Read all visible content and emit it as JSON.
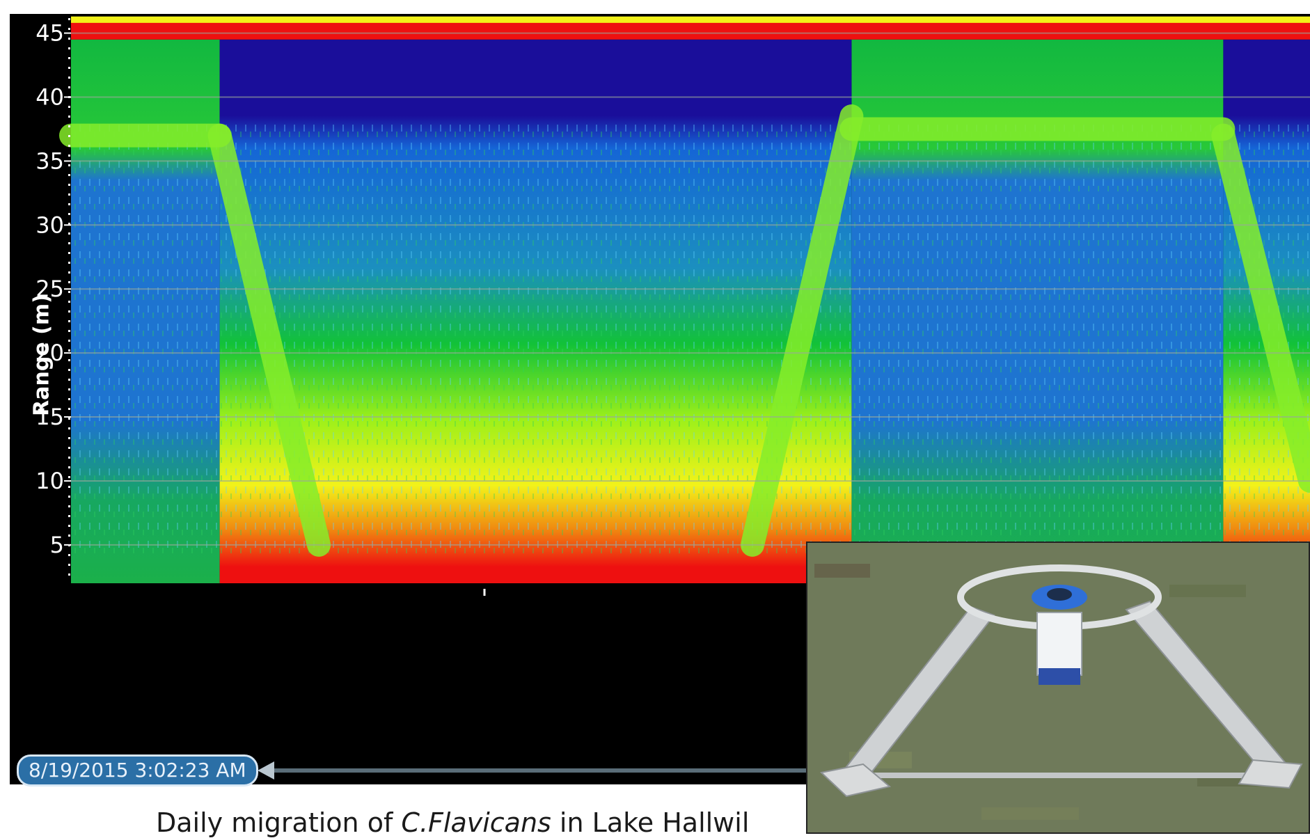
{
  "chart_data": {
    "type": "heatmap",
    "ylabel": "Range (m)",
    "ylim": [
      2,
      46
    ],
    "yticks": [
      5,
      10,
      15,
      20,
      25,
      30,
      35,
      40,
      45
    ],
    "ytick_labels": [
      "5",
      "10",
      "15",
      "20",
      "25",
      "30",
      "35",
      "40",
      "45"
    ],
    "colorscale": [
      "#1010a0",
      "#1060e0",
      "#10c040",
      "#80f010",
      "#f0f010",
      "#f08010",
      "#f01010"
    ],
    "intensity_description": "ordered low to high",
    "surface_band_range_m": [
      44.5,
      46
    ],
    "night_segments_fraction": [
      [
        0.0,
        0.12
      ],
      [
        0.63,
        0.93
      ]
    ],
    "day_segments_fraction": [
      [
        0.12,
        0.63
      ],
      [
        0.93,
        1.0
      ]
    ],
    "x_cursor_timestamp": "8/19/2015 3:02:23 AM"
  },
  "caption": {
    "prefix": "Daily migration of ",
    "species": "C.Flavicans",
    "suffix": " in Lake Hallwil"
  },
  "colors": {
    "deep_blue": "#1a0e9a",
    "blue": "#1565d6",
    "green": "#12c238",
    "yellow_green": "#9ef01a",
    "yellow": "#f2f21a",
    "orange": "#f08a10",
    "red": "#ee1010",
    "badge_blue": "#2b6fa6"
  },
  "photo": {
    "description_icon": "adcp-tripod-photo"
  }
}
